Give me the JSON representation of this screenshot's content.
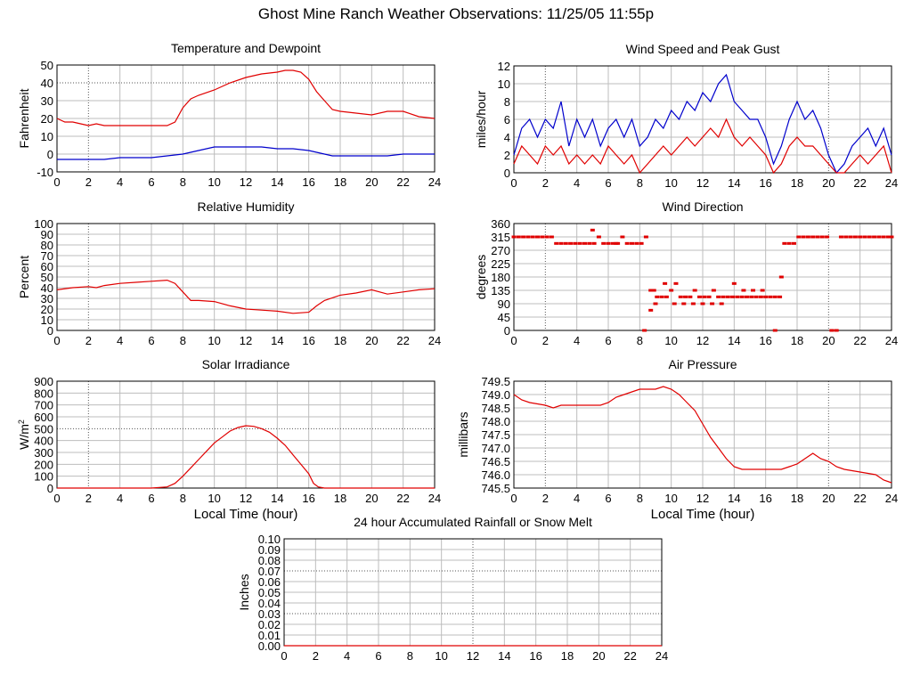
{
  "title": "Ghost Mine Ranch Weather Observations: 11/25/05 11:55p",
  "chart_data": [
    {
      "type": "line",
      "title": "Temperature and Dewpoint",
      "ylabel": "Fahrenheit",
      "xlabel": "",
      "xlim": [
        0,
        24
      ],
      "ylim": [
        -10,
        50
      ],
      "xticks": [
        0,
        2,
        4,
        6,
        8,
        10,
        12,
        14,
        16,
        18,
        20,
        22,
        24
      ],
      "yticks": [
        -10,
        0,
        10,
        20,
        30,
        40,
        50
      ],
      "grid": true,
      "series": [
        {
          "color": "#e00000",
          "x": [
            0,
            0.5,
            1,
            1.5,
            2,
            2.5,
            3,
            4,
            5,
            6,
            7,
            7.5,
            8,
            8.5,
            9,
            10,
            11,
            12,
            13,
            14,
            14.5,
            15,
            15.5,
            16,
            16.5,
            17,
            17.5,
            18,
            19,
            20,
            21,
            22,
            23,
            24
          ],
          "y": [
            20,
            18,
            18,
            17,
            16,
            17,
            16,
            16,
            16,
            16,
            16,
            18,
            26,
            31,
            33,
            36,
            40,
            43,
            45,
            46,
            47,
            47,
            46,
            42,
            35,
            30,
            25,
            24,
            23,
            22,
            24,
            24,
            21,
            20
          ]
        },
        {
          "color": "#0000cc",
          "x": [
            0,
            1,
            2,
            3,
            4,
            5,
            6,
            7,
            8,
            9,
            10,
            11,
            12,
            13,
            14,
            15,
            16,
            17,
            17.5,
            18,
            19,
            20,
            21,
            22,
            23,
            24
          ],
          "y": [
            -3,
            -3,
            -3,
            -3,
            -2,
            -2,
            -2,
            -1,
            0,
            2,
            4,
            4,
            4,
            4,
            3,
            3,
            2,
            0,
            -1,
            -1,
            -1,
            -1,
            -1,
            0,
            0,
            0
          ]
        }
      ]
    },
    {
      "type": "line",
      "title": "Wind Speed and Peak Gust",
      "ylabel": "miles/hour",
      "xlabel": "",
      "xlim": [
        0,
        24
      ],
      "ylim": [
        0,
        12
      ],
      "xticks": [
        0,
        2,
        4,
        6,
        8,
        10,
        12,
        14,
        16,
        18,
        20,
        22,
        24
      ],
      "yticks": [
        0,
        2,
        4,
        6,
        8,
        10,
        12
      ],
      "grid": true,
      "series": [
        {
          "color": "#0000cc",
          "x": [
            0,
            0.5,
            1,
            1.5,
            2,
            2.5,
            3,
            3.5,
            4,
            4.5,
            5,
            5.5,
            6,
            6.5,
            7,
            7.5,
            8,
            8.5,
            9,
            9.5,
            10,
            10.5,
            11,
            11.5,
            12,
            12.5,
            13,
            13.5,
            14,
            14.5,
            15,
            15.5,
            16,
            16.5,
            17,
            17.5,
            18,
            18.5,
            19,
            19.5,
            20,
            20.5,
            21,
            21.5,
            22,
            22.5,
            23,
            23.5,
            24
          ],
          "y": [
            2,
            5,
            6,
            4,
            6,
            5,
            8,
            3,
            6,
            4,
            6,
            3,
            5,
            6,
            4,
            6,
            3,
            4,
            6,
            5,
            7,
            6,
            8,
            7,
            9,
            8,
            10,
            11,
            8,
            7,
            6,
            6,
            4,
            1,
            3,
            6,
            8,
            6,
            7,
            5,
            2,
            0,
            1,
            3,
            4,
            5,
            3,
            5,
            2
          ]
        },
        {
          "color": "#e00000",
          "x": [
            0,
            0.5,
            1,
            1.5,
            2,
            2.5,
            3,
            3.5,
            4,
            4.5,
            5,
            5.5,
            6,
            6.5,
            7,
            7.5,
            8,
            8.5,
            9,
            9.5,
            10,
            10.5,
            11,
            11.5,
            12,
            12.5,
            13,
            13.5,
            14,
            14.5,
            15,
            15.5,
            16,
            16.5,
            17,
            17.5,
            18,
            18.5,
            19,
            19.5,
            20,
            20.5,
            21,
            21.5,
            22,
            22.5,
            23,
            23.5,
            24
          ],
          "y": [
            1,
            3,
            2,
            1,
            3,
            2,
            3,
            1,
            2,
            1,
            2,
            1,
            3,
            2,
            1,
            2,
            0,
            1,
            2,
            3,
            2,
            3,
            4,
            3,
            4,
            5,
            4,
            6,
            4,
            3,
            4,
            3,
            2,
            0,
            1,
            3,
            4,
            3,
            3,
            2,
            1,
            0,
            0,
            1,
            2,
            1,
            2,
            3,
            0
          ]
        }
      ]
    },
    {
      "type": "line",
      "title": "Relative Humidity",
      "ylabel": "Percent",
      "xlabel": "",
      "xlim": [
        0,
        24
      ],
      "ylim": [
        0,
        100
      ],
      "xticks": [
        0,
        2,
        4,
        6,
        8,
        10,
        12,
        14,
        16,
        18,
        20,
        22,
        24
      ],
      "yticks": [
        0,
        10,
        20,
        30,
        40,
        50,
        60,
        70,
        80,
        90,
        100
      ],
      "grid": true,
      "series": [
        {
          "color": "#e00000",
          "x": [
            0,
            1,
            2,
            2.5,
            3,
            4,
            5,
            6,
            7,
            7.5,
            8,
            8.5,
            9,
            10,
            11,
            12,
            13,
            14,
            15,
            16,
            16.5,
            17,
            18,
            19,
            20,
            21,
            22,
            23,
            24
          ],
          "y": [
            38,
            40,
            41,
            40,
            42,
            44,
            45,
            46,
            47,
            44,
            36,
            28,
            28,
            27,
            23,
            20,
            19,
            18,
            16,
            17,
            23,
            28,
            33,
            35,
            38,
            34,
            36,
            38,
            39
          ]
        }
      ]
    },
    {
      "type": "scatter",
      "title": "Wind Direction",
      "ylabel": "degrees",
      "xlabel": "",
      "xlim": [
        0,
        24
      ],
      "ylim": [
        0,
        360
      ],
      "xticks": [
        0,
        2,
        4,
        6,
        8,
        10,
        12,
        14,
        16,
        18,
        20,
        22,
        24
      ],
      "yticks": [
        0,
        45,
        90,
        135,
        180,
        225,
        270,
        315,
        360
      ],
      "grid": true,
      "series": [
        {
          "color": "#e00000",
          "x": [
            0,
            0.3,
            0.6,
            0.9,
            1.2,
            1.5,
            1.8,
            2.1,
            2.4,
            2.7,
            3,
            3.3,
            3.6,
            3.9,
            4.2,
            4.5,
            4.8,
            5.1,
            5.4,
            5.7,
            6,
            6.3,
            6.6,
            6.9,
            7.2,
            7.5,
            7.8,
            8.1,
            8.4,
            5,
            6.5,
            8.3,
            8.7,
            8.9,
            9.1,
            9.4,
            9.7,
            10,
            10.3,
            10.6,
            10.9,
            11.2,
            11.5,
            11.8,
            12.1,
            12.4,
            12.7,
            13,
            13.3,
            13.6,
            13.9,
            14.2,
            14.5,
            14.8,
            15.1,
            15.4,
            15.7,
            16,
            16.3,
            16.6,
            16.9,
            17.2,
            17.5,
            17.8,
            18.1,
            18.4,
            18.7,
            19,
            19.3,
            19.6,
            19.9,
            20.2,
            20.5,
            20.8,
            21.1,
            21.4,
            21.7,
            22,
            22.3,
            22.6,
            22.9,
            23.2,
            23.5,
            23.8,
            24,
            8.7,
            9,
            9.6,
            10.2,
            10.8,
            11.4,
            12,
            12.6,
            13.2,
            14,
            14.6,
            15.2,
            15.8,
            16.6,
            17
          ],
          "y": [
            315,
            315,
            315,
            315,
            315,
            315,
            315,
            315,
            315,
            293,
            293,
            293,
            293,
            293,
            293,
            293,
            293,
            293,
            315,
            293,
            293,
            293,
            293,
            315,
            293,
            293,
            293,
            293,
            315,
            338,
            293,
            0,
            135,
            135,
            113,
            113,
            113,
            135,
            158,
            113,
            113,
            113,
            135,
            113,
            113,
            113,
            135,
            113,
            113,
            113,
            113,
            113,
            113,
            113,
            113,
            113,
            113,
            113,
            113,
            113,
            113,
            293,
            293,
            293,
            315,
            315,
            315,
            315,
            315,
            315,
            315,
            0,
            0,
            315,
            315,
            315,
            315,
            315,
            315,
            315,
            315,
            315,
            315,
            315,
            315,
            68,
            90,
            158,
            90,
            90,
            90,
            90,
            90,
            90,
            158,
            135,
            135,
            135,
            0,
            180
          ]
        }
      ]
    },
    {
      "type": "line",
      "title": "Solar Irradiance",
      "ylabel": "W/m2",
      "xlabel": "Local Time (hour)",
      "xlim": [
        0,
        24
      ],
      "ylim": [
        0,
        900
      ],
      "xticks": [
        0,
        2,
        4,
        6,
        8,
        10,
        12,
        14,
        16,
        18,
        20,
        22,
        24
      ],
      "yticks": [
        0,
        100,
        200,
        300,
        400,
        500,
        600,
        700,
        800,
        900
      ],
      "grid": true,
      "series": [
        {
          "color": "#e00000",
          "x": [
            0,
            2,
            4,
            6,
            7,
            7.5,
            8,
            8.5,
            9,
            9.5,
            10,
            10.5,
            11,
            11.5,
            12,
            12.5,
            13,
            13.5,
            14,
            14.5,
            15,
            15.5,
            16,
            16.3,
            16.6,
            17,
            18,
            20,
            22,
            24
          ],
          "y": [
            0,
            0,
            0,
            0,
            10,
            40,
            100,
            170,
            240,
            310,
            380,
            430,
            480,
            510,
            525,
            520,
            500,
            470,
            420,
            360,
            280,
            200,
            120,
            40,
            10,
            0,
            0,
            0,
            0,
            0
          ]
        }
      ]
    },
    {
      "type": "line",
      "title": "Air Pressure",
      "ylabel": "millibars",
      "xlabel": "Local Time (hour)",
      "xlim": [
        0,
        24
      ],
      "ylim": [
        745.5,
        749.5
      ],
      "xticks": [
        0,
        2,
        4,
        6,
        8,
        10,
        12,
        14,
        16,
        18,
        20,
        22,
        24
      ],
      "yticks": [
        "745.5",
        "746.0",
        "746.5",
        "747.0",
        "747.5",
        "748.0",
        "748.5",
        "749.0",
        "749.5"
      ],
      "grid": true,
      "series": [
        {
          "color": "#e00000",
          "x": [
            0,
            0.5,
            1,
            2,
            2.5,
            3,
            4,
            5,
            5.5,
            6,
            6.5,
            7,
            7.5,
            8,
            8.5,
            9,
            9.5,
            10,
            10.5,
            11,
            11.5,
            12,
            12.5,
            13,
            13.5,
            14,
            14.5,
            15,
            16,
            17,
            17.5,
            18,
            18.5,
            19,
            19.5,
            20,
            20.5,
            21,
            22,
            23,
            23.5,
            24
          ],
          "y": [
            749.0,
            748.8,
            748.7,
            748.6,
            748.5,
            748.6,
            748.6,
            748.6,
            748.6,
            748.7,
            748.9,
            749.0,
            749.1,
            749.2,
            749.2,
            749.2,
            749.3,
            749.2,
            749.0,
            748.7,
            748.4,
            747.9,
            747.4,
            747.0,
            746.6,
            746.3,
            746.2,
            746.2,
            746.2,
            746.2,
            746.3,
            746.4,
            746.6,
            746.8,
            746.6,
            746.5,
            746.3,
            746.2,
            746.1,
            746.0,
            745.8,
            745.7
          ]
        }
      ]
    },
    {
      "type": "line",
      "title": "24 hour Accumulated Rainfall or Snow Melt",
      "ylabel": "Inches",
      "xlabel": "",
      "xlim": [
        0,
        24
      ],
      "ylim": [
        0,
        0.1
      ],
      "xticks": [
        0,
        2,
        4,
        6,
        8,
        10,
        12,
        14,
        16,
        18,
        20,
        22,
        24
      ],
      "yticks": [
        "0.00",
        "0.01",
        "0.02",
        "0.03",
        "0.04",
        "0.05",
        "0.06",
        "0.07",
        "0.08",
        "0.09",
        "0.10"
      ],
      "grid": true,
      "series": [
        {
          "color": "#e00000",
          "x": [
            0,
            24
          ],
          "y": [
            0,
            0
          ]
        }
      ]
    }
  ]
}
